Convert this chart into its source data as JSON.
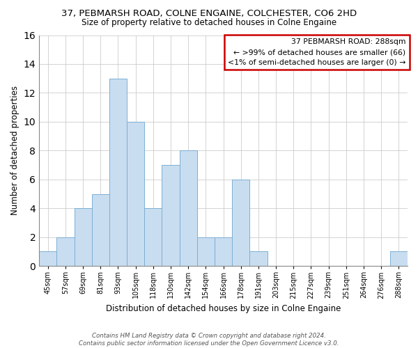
{
  "title": "37, PEBMARSH ROAD, COLNE ENGAINE, COLCHESTER, CO6 2HD",
  "subtitle": "Size of property relative to detached houses in Colne Engaine",
  "xlabel": "Distribution of detached houses by size in Colne Engaine",
  "ylabel": "Number of detached properties",
  "bin_labels": [
    "45sqm",
    "57sqm",
    "69sqm",
    "81sqm",
    "93sqm",
    "105sqm",
    "118sqm",
    "130sqm",
    "142sqm",
    "154sqm",
    "166sqm",
    "178sqm",
    "191sqm",
    "203sqm",
    "215sqm",
    "227sqm",
    "239sqm",
    "251sqm",
    "264sqm",
    "276sqm",
    "288sqm"
  ],
  "bar_heights": [
    1,
    2,
    4,
    5,
    13,
    10,
    4,
    7,
    8,
    2,
    2,
    6,
    1,
    0,
    0,
    0,
    0,
    0,
    0,
    0,
    1
  ],
  "bar_color": "#c9ddf0",
  "bar_edge_color": "#7bafd4",
  "ylim": [
    0,
    16
  ],
  "yticks": [
    0,
    2,
    4,
    6,
    8,
    10,
    12,
    14,
    16
  ],
  "legend_title": "37 PEBMARSH ROAD: 288sqm",
  "legend_line1": "← >99% of detached houses are smaller (66)",
  "legend_line2": "<1% of semi-detached houses are larger (0) →",
  "legend_box_edge_color": "#cc0000",
  "footer_line1": "Contains HM Land Registry data © Crown copyright and database right 2024.",
  "footer_line2": "Contains public sector information licensed under the Open Government Licence v3.0."
}
